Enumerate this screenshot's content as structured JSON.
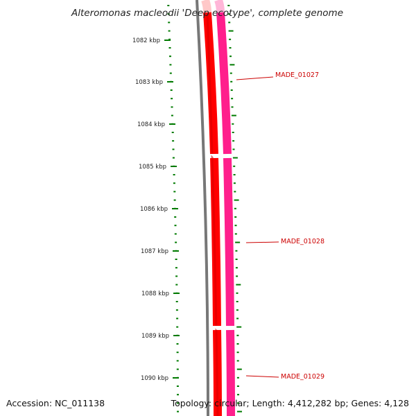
{
  "title": "Alteromonas macleodii 'Deep ecotype', complete genome",
  "footer": {
    "accession": "Accession: NC_011138",
    "topology": "Topology: circular; Length: 4,412,282 bp; Genes: 4,128"
  },
  "scale": {
    "labels": [
      "1082 kbp",
      "1083 kbp",
      "1084 kbp",
      "1085 kbp",
      "1086 kbp",
      "1087 kbp",
      "1088 kbp",
      "1089 kbp",
      "1090 kbp"
    ]
  },
  "genes": [
    {
      "id": "MADE_01027",
      "label": "MADE_01027"
    },
    {
      "id": "MADE_01028",
      "label": "MADE_01028"
    },
    {
      "id": "MADE_01029",
      "label": "MADE_01029"
    }
  ],
  "colors": {
    "backbone": "#777777",
    "cds": "#ff0000",
    "cds_light": "#ffc8c8",
    "gene": "#ff1f8c",
    "gene_light": "#ffb6d8",
    "ticks": "#007a00",
    "label": "#cc0000"
  }
}
